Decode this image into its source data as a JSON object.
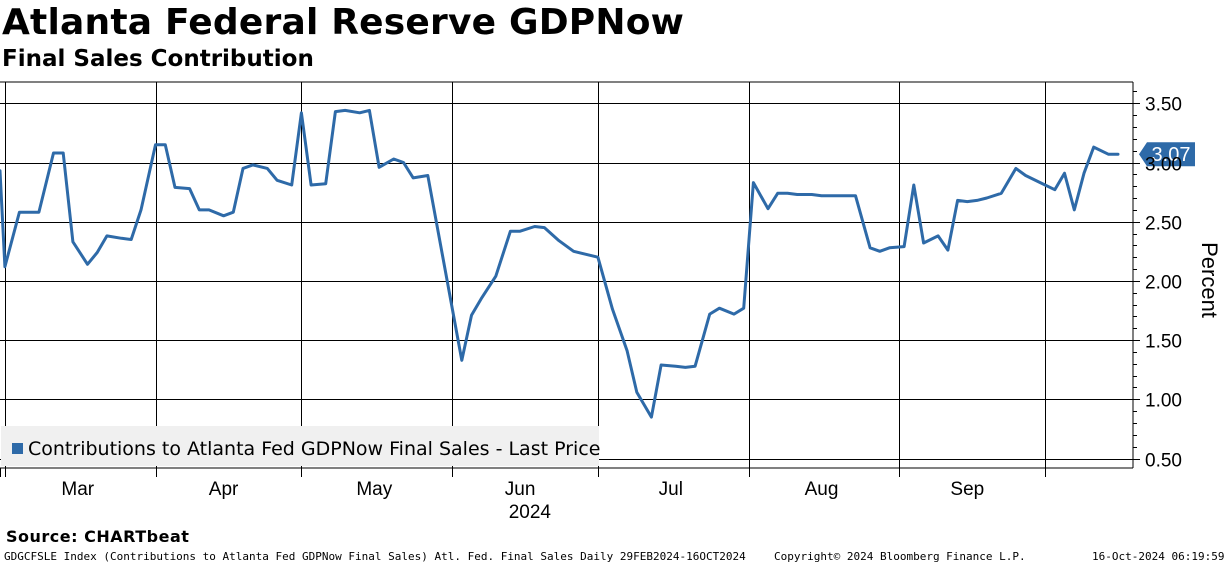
{
  "header": {
    "title": "Atlanta Federal Reserve GDPNow",
    "subtitle": "Final Sales Contribution"
  },
  "footer": {
    "source": "Source: CHARTbeat",
    "ticker": "GDGCFSLE Index (Contributions to Atlanta Fed GDPNow Final Sales) Atl. Fed. Final Sales  Daily 29FEB2024-16OCT2024",
    "copyright": "Copyright© 2024 Bloomberg Finance L.P.",
    "timestamp": "16-Oct-2024 06:19:59"
  },
  "colors": {
    "line": "#2e6aa8",
    "grid": "#000000",
    "legend_bg": "#f0f0f0"
  },
  "chart_data": {
    "type": "line",
    "title": "Atlanta Federal Reserve GDPNow",
    "subtitle": "Final Sales Contribution",
    "xlabel": "2024",
    "ylabel": "Percent",
    "ylim": [
      0.42,
      3.68
    ],
    "yticks": [
      0.5,
      1.0,
      1.5,
      2.0,
      2.5,
      3.0,
      3.5
    ],
    "ytick_labels": [
      "0.50",
      "1.00",
      "1.50",
      "2.00",
      "2.50",
      "3.00",
      "3.50"
    ],
    "xlim": [
      "2024-02-29",
      "2024-10-16"
    ],
    "month_labels": [
      {
        "label": "Mar",
        "date": "2024-03-16"
      },
      {
        "label": "Apr",
        "date": "2024-04-15"
      },
      {
        "label": "May",
        "date": "2024-05-16"
      },
      {
        "label": "Jun",
        "date": "2024-06-15"
      },
      {
        "label": "Jul",
        "date": "2024-07-16"
      },
      {
        "label": "Aug",
        "date": "2024-08-16"
      },
      {
        "label": "Sep",
        "date": "2024-09-15"
      }
    ],
    "year_label": "2024",
    "month_starts": [
      "2024-03-01",
      "2024-04-01",
      "2024-05-01",
      "2024-06-01",
      "2024-07-01",
      "2024-08-01",
      "2024-09-01",
      "2024-10-01"
    ],
    "grid": true,
    "legend": {
      "position": "bottom-left",
      "entries": [
        "Contributions to Atlanta Fed GDPNow Final Sales - Last Price"
      ]
    },
    "last_value_label": "3.07",
    "series": [
      {
        "name": "Contributions to Atlanta Fed GDPNow Final Sales - Last Price",
        "points": [
          [
            "2024-02-29",
            2.93
          ],
          [
            "2024-03-01",
            2.12
          ],
          [
            "2024-03-04",
            2.58
          ],
          [
            "2024-03-06",
            2.58
          ],
          [
            "2024-03-08",
            2.58
          ],
          [
            "2024-03-11",
            3.08
          ],
          [
            "2024-03-13",
            3.08
          ],
          [
            "2024-03-15",
            2.33
          ],
          [
            "2024-03-18",
            2.14
          ],
          [
            "2024-03-20",
            2.24
          ],
          [
            "2024-03-22",
            2.38
          ],
          [
            "2024-03-25",
            2.36
          ],
          [
            "2024-03-27",
            2.35
          ],
          [
            "2024-03-29",
            2.6
          ],
          [
            "2024-04-01",
            3.15
          ],
          [
            "2024-04-03",
            3.15
          ],
          [
            "2024-04-05",
            2.79
          ],
          [
            "2024-04-08",
            2.78
          ],
          [
            "2024-04-10",
            2.6
          ],
          [
            "2024-04-12",
            2.6
          ],
          [
            "2024-04-15",
            2.55
          ],
          [
            "2024-04-17",
            2.58
          ],
          [
            "2024-04-19",
            2.95
          ],
          [
            "2024-04-21",
            2.98
          ],
          [
            "2024-04-24",
            2.95
          ],
          [
            "2024-04-26",
            2.85
          ],
          [
            "2024-04-29",
            2.81
          ],
          [
            "2024-05-01",
            3.42
          ],
          [
            "2024-05-03",
            2.81
          ],
          [
            "2024-05-06",
            2.82
          ],
          [
            "2024-05-08",
            3.43
          ],
          [
            "2024-05-10",
            3.44
          ],
          [
            "2024-05-13",
            3.42
          ],
          [
            "2024-05-15",
            3.44
          ],
          [
            "2024-05-17",
            2.96
          ],
          [
            "2024-05-20",
            3.03
          ],
          [
            "2024-05-22",
            3.0
          ],
          [
            "2024-05-24",
            2.87
          ],
          [
            "2024-05-27",
            2.89
          ],
          [
            "2024-06-03",
            1.33
          ],
          [
            "2024-06-05",
            1.71
          ],
          [
            "2024-06-07",
            1.85
          ],
          [
            "2024-06-10",
            2.04
          ],
          [
            "2024-06-13",
            2.42
          ],
          [
            "2024-06-15",
            2.42
          ],
          [
            "2024-06-18",
            2.46
          ],
          [
            "2024-06-20",
            2.45
          ],
          [
            "2024-06-23",
            2.34
          ],
          [
            "2024-06-26",
            2.25
          ],
          [
            "2024-06-28",
            2.23
          ],
          [
            "2024-07-01",
            2.2
          ],
          [
            "2024-07-04",
            1.76
          ],
          [
            "2024-07-07",
            1.41
          ],
          [
            "2024-07-09",
            1.06
          ],
          [
            "2024-07-12",
            0.85
          ],
          [
            "2024-07-14",
            1.29
          ],
          [
            "2024-07-17",
            1.28
          ],
          [
            "2024-07-19",
            1.27
          ],
          [
            "2024-07-21",
            1.28
          ],
          [
            "2024-07-24",
            1.72
          ],
          [
            "2024-07-26",
            1.77
          ],
          [
            "2024-07-29",
            1.72
          ],
          [
            "2024-07-31",
            1.77
          ],
          [
            "2024-08-02",
            2.83
          ],
          [
            "2024-08-05",
            2.61
          ],
          [
            "2024-08-07",
            2.74
          ],
          [
            "2024-08-09",
            2.74
          ],
          [
            "2024-08-11",
            2.73
          ],
          [
            "2024-08-14",
            2.73
          ],
          [
            "2024-08-16",
            2.72
          ],
          [
            "2024-08-19",
            2.72
          ],
          [
            "2024-08-21",
            2.72
          ],
          [
            "2024-08-23",
            2.72
          ],
          [
            "2024-08-26",
            2.28
          ],
          [
            "2024-08-28",
            2.25
          ],
          [
            "2024-08-30",
            2.28
          ],
          [
            "2024-09-02",
            2.29
          ],
          [
            "2024-09-04",
            2.81
          ],
          [
            "2024-09-06",
            2.32
          ],
          [
            "2024-09-09",
            2.38
          ],
          [
            "2024-09-11",
            2.26
          ],
          [
            "2024-09-13",
            2.68
          ],
          [
            "2024-09-15",
            2.67
          ],
          [
            "2024-09-17",
            2.68
          ],
          [
            "2024-09-19",
            2.7
          ],
          [
            "2024-09-22",
            2.74
          ],
          [
            "2024-09-25",
            2.95
          ],
          [
            "2024-09-27",
            2.89
          ],
          [
            "2024-09-30",
            2.83
          ],
          [
            "2024-10-03",
            2.77
          ],
          [
            "2024-10-05",
            2.91
          ],
          [
            "2024-10-07",
            2.6
          ],
          [
            "2024-10-09",
            2.91
          ],
          [
            "2024-10-11",
            3.13
          ],
          [
            "2024-10-14",
            3.07
          ],
          [
            "2024-10-16",
            3.07
          ]
        ]
      }
    ]
  }
}
